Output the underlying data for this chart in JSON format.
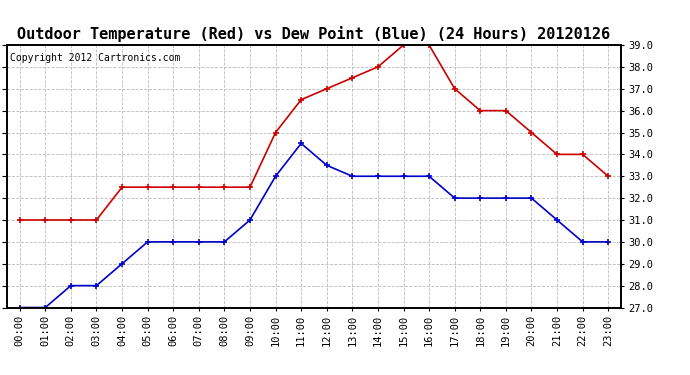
{
  "title": "Outdoor Temperature (Red) vs Dew Point (Blue) (24 Hours) 20120126",
  "copyright_text": "Copyright 2012 Cartronics.com",
  "hours": [
    0,
    1,
    2,
    3,
    4,
    5,
    6,
    7,
    8,
    9,
    10,
    11,
    12,
    13,
    14,
    15,
    16,
    17,
    18,
    19,
    20,
    21,
    22,
    23
  ],
  "temp_red": [
    31.0,
    31.0,
    31.0,
    31.0,
    32.5,
    32.5,
    32.5,
    32.5,
    32.5,
    32.5,
    35.0,
    36.5,
    37.0,
    37.5,
    38.0,
    39.0,
    39.0,
    37.0,
    36.0,
    36.0,
    35.0,
    34.0,
    34.0,
    33.0
  ],
  "dew_blue": [
    27.0,
    27.0,
    28.0,
    28.0,
    29.0,
    30.0,
    30.0,
    30.0,
    30.0,
    31.0,
    33.0,
    34.5,
    33.5,
    33.0,
    33.0,
    33.0,
    33.0,
    32.0,
    32.0,
    32.0,
    32.0,
    31.0,
    30.0,
    30.0
  ],
  "ylim_min": 27.0,
  "ylim_max": 39.0,
  "yticks": [
    27.0,
    28.0,
    29.0,
    30.0,
    31.0,
    32.0,
    33.0,
    34.0,
    35.0,
    36.0,
    37.0,
    38.0,
    39.0
  ],
  "red_color": "#cc0000",
  "blue_color": "#0000cc",
  "bg_color": "#ffffff",
  "plot_bg_color": "#ffffff",
  "grid_color": "#bbbbbb",
  "title_fontsize": 11,
  "tick_label_fontsize": 7.5,
  "copyright_fontsize": 7
}
